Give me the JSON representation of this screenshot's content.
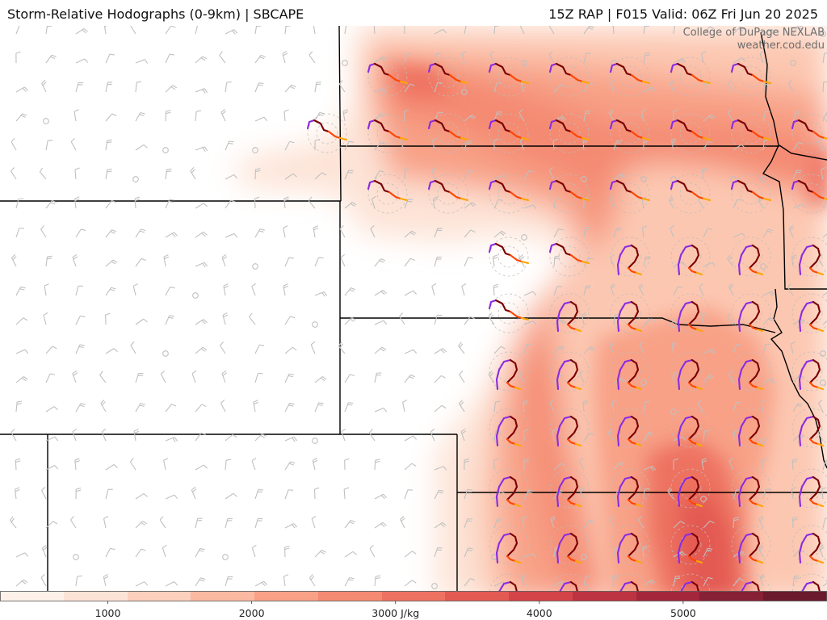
{
  "header": {
    "title": "Storm-Relative Hodographs (0-9km) | SBCAPE",
    "run_info": "15Z RAP | F015 Valid: 06Z Fri Jun 20 2025"
  },
  "credit": {
    "line1": "College of DuPage NEXLAB",
    "line2": "weather.cod.edu"
  },
  "legend": {
    "variable": "SBCAPE",
    "units": "J/kg",
    "ticks": [
      "1000",
      "2000",
      "3000 J/kg",
      "4000",
      "5000"
    ],
    "tick_values": [
      1000,
      2000,
      3000,
      4000,
      5000
    ],
    "range": [
      250,
      6000
    ],
    "colors": [
      "#fdf1ea",
      "#fde3d6",
      "#fcd0bd",
      "#fbb9a1",
      "#f8a187",
      "#f48a72",
      "#ee7261",
      "#e35a52",
      "#d34448",
      "#be3341",
      "#a3263a",
      "#862034",
      "#6a1a2c"
    ]
  },
  "hodograph_colors": {
    "layer_0_1km": "#8a2be2",
    "layer_1_3km": "#7a0000",
    "layer_3_6km": "#ff4500",
    "layer_6_9km": "#ffa500"
  },
  "barb_color": "#c0c0c0",
  "border_color": "#000000"
}
